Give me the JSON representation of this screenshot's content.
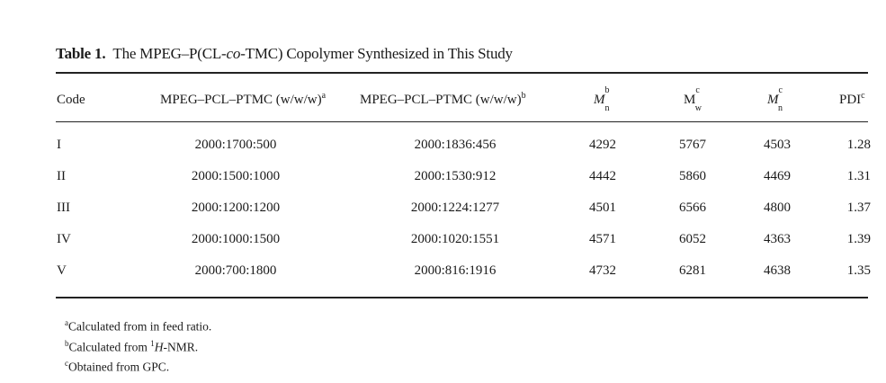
{
  "caption": {
    "label": "Table 1.",
    "title_pre": "The MPEG–P(CL-",
    "title_italic": "co",
    "title_post": "-TMC) Copolymer Synthesized in This Study"
  },
  "headers": {
    "code": "Code",
    "feed": "MPEG–PCL–PTMC (w/w/w)",
    "feed_sup": "a",
    "nmr": "MPEG–PCL–PTMC (w/w/w)",
    "nmr_sup": "b",
    "mn_b_main": "M",
    "mn_b_sup": "b",
    "mn_b_sub": "n",
    "mw_main": "M",
    "mw_sup": "c",
    "mw_sub": "w",
    "mn_c_main": "M",
    "mn_c_sup": "c",
    "mn_c_sub": "n",
    "pdi": "PDI",
    "pdi_sup": "c"
  },
  "rows": [
    {
      "code": "I",
      "feed": "2000:1700:500",
      "nmr": "2000:1836:456",
      "mn_b": "4292",
      "mw": "5767",
      "mn_c": "4503",
      "pdi": "1.28"
    },
    {
      "code": "II",
      "feed": "2000:1500:1000",
      "nmr": "2000:1530:912",
      "mn_b": "4442",
      "mw": "5860",
      "mn_c": "4469",
      "pdi": "1.31"
    },
    {
      "code": "III",
      "feed": "2000:1200:1200",
      "nmr": "2000:1224:1277",
      "mn_b": "4501",
      "mw": "6566",
      "mn_c": "4800",
      "pdi": "1.37"
    },
    {
      "code": "IV",
      "feed": "2000:1000:1500",
      "nmr": "2000:1020:1551",
      "mn_b": "4571",
      "mw": "6052",
      "mn_c": "4363",
      "pdi": "1.39"
    },
    {
      "code": "V",
      "feed": "2000:700:1800",
      "nmr": "2000:816:1916",
      "mn_b": "4732",
      "mw": "6281",
      "mn_c": "4638",
      "pdi": "1.35"
    }
  ],
  "footnotes": {
    "a_mark": "a",
    "a_text": "Calculated from in feed ratio.",
    "b_mark": "b",
    "b_pre": "Calculated from ",
    "b_iso": "1",
    "b_nuc": "H",
    "b_post": "-NMR.",
    "c_mark": "c",
    "c_text": "Obtained from GPC."
  }
}
